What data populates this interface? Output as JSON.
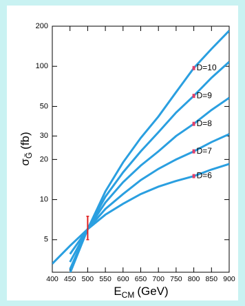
{
  "chart_data": {
    "type": "line",
    "y_label": "σ",
    "y_label_sub": "G̃",
    "y_label_unit": "(fb)",
    "x_label": "E",
    "x_label_sub": "CM",
    "x_label_unit": "(GeV)",
    "x": [
      400,
      450,
      500,
      550,
      600,
      650,
      700,
      750,
      800,
      850,
      900
    ],
    "series": [
      {
        "name": "D=10",
        "color": "#2a9fe0",
        "values": [
          null,
          2.8,
          6,
          11.5,
          19,
          29,
          42,
          64,
          97,
          135,
          185
        ]
      },
      {
        "name": "D=9",
        "color": "#2a9fe0",
        "values": [
          null,
          3.0,
          6,
          10.5,
          16,
          23,
          32,
          45,
          60,
          82,
          108
        ]
      },
      {
        "name": "D=8",
        "color": "#2a9fe0",
        "values": [
          null,
          3.4,
          6,
          9.5,
          13.5,
          18,
          23,
          30,
          37,
          47,
          58
        ]
      },
      {
        "name": "D=7",
        "color": "#2a9fe0",
        "values": [
          null,
          3.9,
          6,
          8.5,
          11,
          14,
          17,
          20,
          23,
          27,
          31
        ]
      },
      {
        "name": "D=6",
        "color": "#2a9fe0",
        "values": [
          3.3,
          4.5,
          6,
          7.7,
          9.3,
          11,
          12.5,
          13.8,
          15,
          16.8,
          18.5
        ]
      }
    ],
    "marker_color": "#e0406a",
    "error_bar": {
      "x": 500,
      "low": 5,
      "high": 7.5,
      "color": "#e02020"
    },
    "xlim": [
      400,
      900
    ],
    "xticks": [
      400,
      450,
      500,
      550,
      600,
      650,
      700,
      750,
      800,
      850,
      900
    ],
    "ylim": [
      2.85,
      200
    ],
    "yticks": [
      5,
      10,
      20,
      30,
      50,
      100,
      200
    ],
    "log_y": true
  }
}
